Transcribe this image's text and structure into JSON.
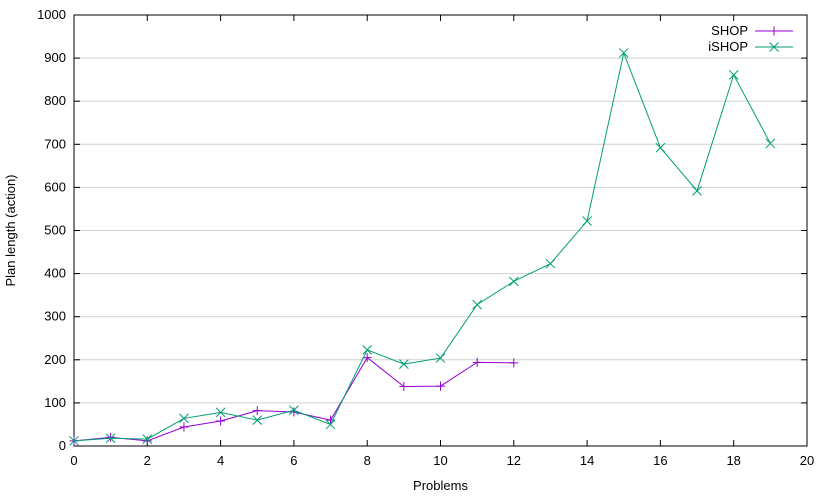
{
  "chart_data": {
    "type": "line",
    "title": "",
    "xlabel": "Problems",
    "ylabel": "Plan length (action)",
    "xlim": [
      0,
      20
    ],
    "ylim": [
      0,
      1000
    ],
    "xticks": [
      0,
      2,
      4,
      6,
      8,
      10,
      12,
      14,
      16,
      18,
      20
    ],
    "yticks": [
      0,
      100,
      200,
      300,
      400,
      500,
      600,
      700,
      800,
      900,
      1000
    ],
    "grid": "horizontal",
    "legend_position": "top-right",
    "series": [
      {
        "name": "SHOP",
        "color": "#9400d3",
        "marker": "plus",
        "x": [
          0,
          1,
          2,
          3,
          4,
          5,
          6,
          7,
          8,
          9,
          10,
          11,
          12
        ],
        "y": [
          12,
          20,
          12,
          44,
          58,
          82,
          79,
          60,
          205,
          138,
          139,
          194,
          193
        ]
      },
      {
        "name": "iSHOP",
        "color": "#009e73",
        "marker": "cross",
        "x": [
          0,
          1,
          2,
          3,
          4,
          5,
          6,
          7,
          8,
          9,
          10,
          11,
          12,
          13,
          14,
          15,
          16,
          17,
          18,
          19
        ],
        "y": [
          12,
          18,
          16,
          64,
          78,
          60,
          83,
          50,
          223,
          190,
          204,
          328,
          382,
          423,
          522,
          912,
          692,
          592,
          861,
          702
        ]
      }
    ]
  }
}
